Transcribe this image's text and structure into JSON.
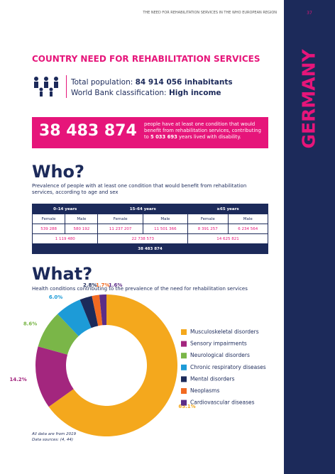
{
  "header": {
    "running_title": "THE NEED FOR REHABILITATION SERVICES IN THE WHO EUROPEAN REGION",
    "page_number": "37",
    "country": "GERMANY"
  },
  "section_title": "COUNTRY NEED FOR REHABILITATION SERVICES",
  "population": {
    "label": "Total population: ",
    "value": "84 914 056 inhabitants",
    "class_label": "World Bank classification: ",
    "class_value": "High income"
  },
  "highlight": {
    "number": "38 483 874",
    "text": "people have at least one condition that would benefit from rehabilitation services, contributing to ",
    "years": "5 033 693",
    "text_end": " years lived with disability."
  },
  "who": {
    "title": "Who?",
    "description": "Prevalence of people with at least one condition that would benefit from rehabilitation services, according to age and sex"
  },
  "table": {
    "groups": [
      "0–14 years",
      "15–64 years",
      "≥65 years"
    ],
    "sexes": [
      "Female",
      "Male",
      "Female",
      "Male",
      "Female",
      "Male"
    ],
    "values": [
      "539 288",
      "580 192",
      "11 237 207",
      "11 501 366",
      "8 391 257",
      "6 234 564"
    ],
    "subtotals": [
      "1 119 480",
      "22 738 573",
      "14 625 821"
    ],
    "total": "38 483 874"
  },
  "what": {
    "title": "What?",
    "description": "Health conditions contributing to the prevalence of the need for rehabilitation services"
  },
  "chart_data": {
    "type": "donut",
    "categories": [
      "Musculoskeletal disorders",
      "Sensory impairments",
      "Neurological disorders",
      "Chronic respiratory diseases",
      "Mental disorders",
      "Neoplasms",
      "Cardiovascular diseases"
    ],
    "values": [
      65.1,
      14.2,
      8.6,
      6.0,
      2.8,
      1.7,
      1.6
    ],
    "value_labels": [
      "65.1%",
      "14.2%",
      "8.6%",
      "6.0%",
      "2.8%",
      "1.7%",
      "1.6%"
    ],
    "colors": [
      "#f4a81d",
      "#a3267e",
      "#7ab648",
      "#1d9bd7",
      "#1c2a5a",
      "#f26a21",
      "#5c2d87"
    ]
  },
  "footnotes": [
    "All data are from 2019",
    "Data sources: (4, 44)"
  ]
}
